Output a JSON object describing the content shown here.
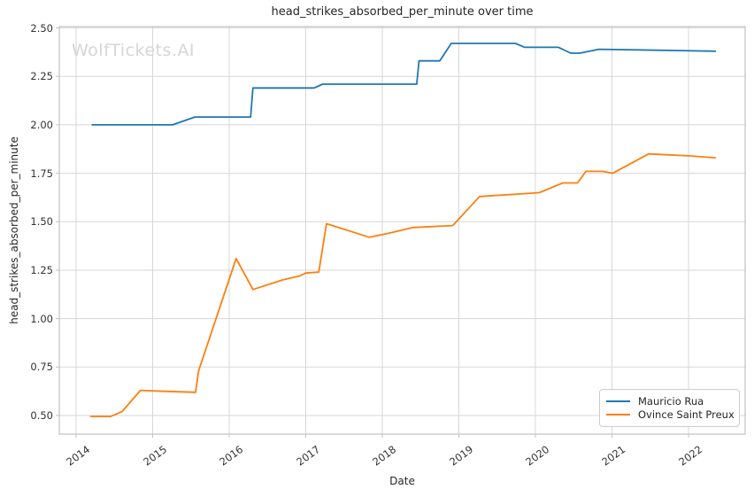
{
  "watermark": "WolfTickets.AI",
  "chart_data": {
    "type": "line",
    "title": "head_strikes_absorbed_per_minute over time",
    "xlabel": "Date",
    "ylabel": "head_strikes_absorbed_per_minute",
    "xlim": [
      2013.78,
      2022.74
    ],
    "ylim": [
      0.404,
      2.507
    ],
    "xticks": [
      2014,
      2015,
      2016,
      2017,
      2018,
      2019,
      2020,
      2021,
      2022
    ],
    "yticks": [
      0.5,
      0.75,
      1.0,
      1.25,
      1.5,
      1.75,
      2.0,
      2.25,
      2.5
    ],
    "grid": true,
    "legend_position": "lower right",
    "series": [
      {
        "name": "Mauricio Rua",
        "color": "#1f77b4",
        "points": [
          [
            2014.21,
            2.0
          ],
          [
            2015.26,
            2.0
          ],
          [
            2015.55,
            2.04
          ],
          [
            2016.28,
            2.04
          ],
          [
            2016.31,
            2.19
          ],
          [
            2017.11,
            2.19
          ],
          [
            2017.22,
            2.21
          ],
          [
            2018.45,
            2.21
          ],
          [
            2018.48,
            2.33
          ],
          [
            2018.75,
            2.33
          ],
          [
            2018.9,
            2.42
          ],
          [
            2019.74,
            2.42
          ],
          [
            2019.86,
            2.4
          ],
          [
            2020.3,
            2.4
          ],
          [
            2020.46,
            2.37
          ],
          [
            2020.58,
            2.37
          ],
          [
            2020.83,
            2.39
          ],
          [
            2021.6,
            2.385
          ],
          [
            2022.35,
            2.38
          ]
        ]
      },
      {
        "name": "Ovince Saint Preux",
        "color": "#ff7f0e",
        "points": [
          [
            2014.19,
            0.495
          ],
          [
            2014.45,
            0.495
          ],
          [
            2014.6,
            0.52
          ],
          [
            2014.84,
            0.63
          ],
          [
            2015.15,
            0.625
          ],
          [
            2015.56,
            0.62
          ],
          [
            2015.6,
            0.73
          ],
          [
            2016.09,
            1.31
          ],
          [
            2016.31,
            1.15
          ],
          [
            2016.7,
            1.2
          ],
          [
            2016.92,
            1.22
          ],
          [
            2017.0,
            1.235
          ],
          [
            2017.17,
            1.24
          ],
          [
            2017.27,
            1.49
          ],
          [
            2017.83,
            1.42
          ],
          [
            2018.08,
            1.44
          ],
          [
            2018.4,
            1.47
          ],
          [
            2018.92,
            1.48
          ],
          [
            2019.27,
            1.63
          ],
          [
            2019.87,
            1.645
          ],
          [
            2020.05,
            1.65
          ],
          [
            2020.36,
            1.7
          ],
          [
            2020.55,
            1.7
          ],
          [
            2020.66,
            1.76
          ],
          [
            2020.88,
            1.76
          ],
          [
            2021.01,
            1.75
          ],
          [
            2021.48,
            1.85
          ],
          [
            2022.0,
            1.84
          ],
          [
            2022.35,
            1.83
          ]
        ]
      }
    ]
  }
}
